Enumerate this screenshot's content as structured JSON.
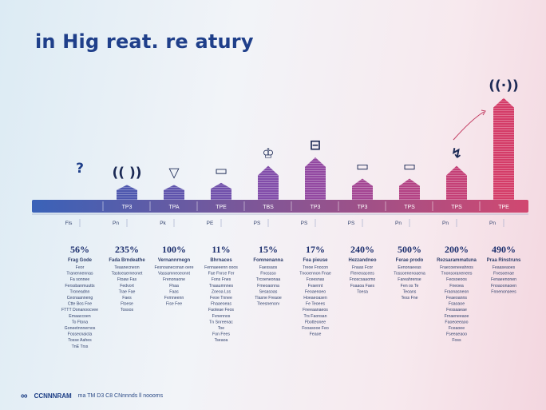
{
  "title": "in Hig reat. re atury",
  "footer": {
    "logo": "CCNNNRAM",
    "text": "ma TM D3 C8 CNnnnds ll noooms"
  },
  "colors": {
    "bar_start": "#3b5bb0",
    "bar_mid": "#8a4aa8",
    "bar_end": "#d43c68",
    "axis_start": "#3a62b8",
    "axis_end": "#d14870",
    "label_text": "#1c2f6e",
    "small_text": "#33436e"
  },
  "chart_data": {
    "type": "bar",
    "categories": [
      "?",
      "(( ))",
      "▽",
      "▭",
      "♔",
      "⊟",
      "▭",
      "▭",
      "↯",
      "((·))"
    ],
    "axis_labels": [
      "",
      "TP3",
      "TPA",
      "TPE",
      "TBS",
      "TP3",
      "TP3",
      "TPS",
      "TPS",
      "TPE"
    ],
    "tick_labels": [
      "Fls",
      "Pn",
      "Pk",
      "PE",
      "PS",
      "PS",
      "PS",
      "Pn",
      "Pn",
      "Pn"
    ],
    "values": [
      0,
      3.5,
      3.5,
      4,
      8,
      10,
      5,
      5,
      8,
      24
    ],
    "value_labels": [
      "56%",
      "235%",
      "100%",
      "11%",
      "15%",
      "17%",
      "240%",
      "500%",
      "200%",
      "490%"
    ],
    "headings": [
      "Frag Gode",
      "Fada Brndeathe",
      "Vernannrnegn",
      "Bhrnaces",
      "Fomnenanna",
      "Fea pieuse",
      "Hezzandneo",
      "Ferae prodo",
      "Rezsarammatuna",
      "Praa Rinstruns"
    ],
    "descriptions": [
      [
        "Feor",
        "Tranennennas",
        "Fa sonnee",
        "Ferssbanmuutts",
        "Troneadnn",
        "Ceonaanneng",
        "Ctte Bos Fne",
        "FTTT Donanoocvee",
        "Emaaccoen",
        "To Ftona",
        "Goneetnnnernos",
        "Fossecnaicta",
        "Tosse Aahes",
        "TnE Trss"
      ],
      [
        "Teaanecneon",
        "Tastoeaerneonet",
        "Ftoaw Fas",
        "Fedvort",
        "Trae Fae",
        "Faes",
        "Ftoese",
        "Tossos"
      ],
      [
        "Fesnoaneconan oere",
        "Vassamneoeonnt",
        "Frenonaone",
        "Fhaa",
        "Faas",
        "Fvmneenn",
        "Fise Fee"
      ],
      [
        "Fennaeeenn ooos",
        "Fae Fnrce Fer",
        "Fons Fnes",
        "Tnaaumnnes",
        "Zoeoa Lss",
        "Feoe Tnnee",
        "Fhaaeoeas",
        "Faoteae Feos",
        "Fvnennos",
        "Tn Snreenac",
        "Toe",
        "Fon Fees",
        "Tseaoa"
      ],
      [
        "Faessaos",
        "Fnossso",
        "Trcoeneonaa",
        "Fmeoaonna",
        "Sesasoas",
        "Tlasne Freaoe",
        "Tleesnenorv"
      ],
      [
        "Treoe Fnocon",
        "Tnooennon Fnae",
        "Fceesnas",
        "Fvaennt",
        "Feoaenoeo",
        "Hoeaeoasen",
        "Fe Teoees",
        "Fneeaanaeos",
        "Trs Faonsan",
        "Fbotteonee",
        "Fooasooe Feo",
        "Feaoe"
      ],
      [
        "Fnaas Fcor",
        "Fleneoacees",
        "Fnoscsaaomo",
        "Fsaaoa Faes",
        "Toesa"
      ],
      [
        "Eenonaeeas",
        "Tossoenenoaena",
        "Fareahrense",
        "Fen os Te",
        "Teoans",
        "Tess Fne"
      ],
      [
        "Fraecoeneeahnos",
        "Tnonsoranenees",
        "Feosoeoos",
        "Fneoea",
        "Fraonasneon",
        "Feaeoanns",
        "Fsaoaoe",
        "Fessaaeae",
        "Frnaeneeaoe",
        "Faoeoeeaoo",
        "Fceaoee",
        "Fseeaeaoo",
        "Foss"
      ],
      [
        "Feaaseaoes",
        "Fnesoenae",
        "Fenaeenonen",
        "Fnoaoonaoen",
        "Fnnenonsees"
      ]
    ],
    "ylim": [
      0,
      26
    ]
  }
}
